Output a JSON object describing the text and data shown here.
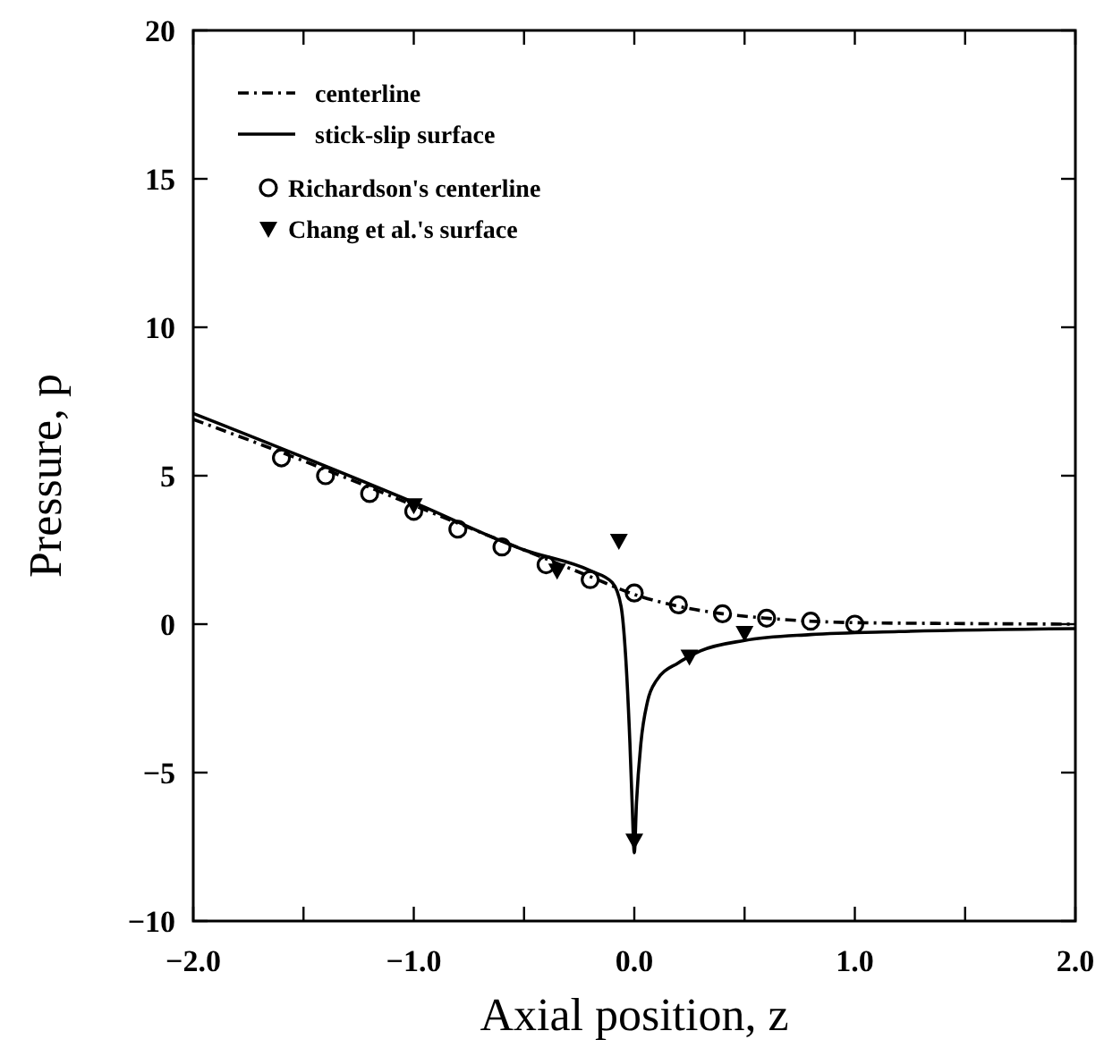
{
  "chart_data": {
    "type": "line",
    "xlabel": "Axial position, z",
    "ylabel": "Pressure, p",
    "xlim": [
      -2,
      2
    ],
    "ylim": [
      -10,
      20
    ],
    "xticks": [
      {
        "value": -2,
        "label": "−2.0"
      },
      {
        "value": -1.5,
        "label": null
      },
      {
        "value": -1,
        "label": "−1.0"
      },
      {
        "value": -0.5,
        "label": null
      },
      {
        "value": 0,
        "label": "0.0"
      },
      {
        "value": 0.5,
        "label": null
      },
      {
        "value": 1,
        "label": "1.0"
      },
      {
        "value": 1.5,
        "label": null
      },
      {
        "value": 2,
        "label": "2.0"
      }
    ],
    "yticks": [
      {
        "value": -10,
        "label": "−10"
      },
      {
        "value": -5,
        "label": "−5"
      },
      0,
      5,
      10,
      15,
      20
    ],
    "grid": false,
    "legend": "top left",
    "series": [
      {
        "name": "centerline",
        "color": "#000000",
        "line_style": "dashdot",
        "marker": "none",
        "x": [
          -2,
          -1.5,
          -1,
          -0.5,
          -0.2,
          0,
          0.2,
          0.4,
          0.6,
          0.8,
          1,
          1.5,
          2
        ],
        "values": [
          6.9,
          5.5,
          4.0,
          2.5,
          1.6,
          1.0,
          0.6,
          0.35,
          0.2,
          0.1,
          0.05,
          0.02,
          0
        ]
      },
      {
        "name": "stick-slip surface",
        "color": "#000000",
        "line_style": "solid",
        "marker": "none",
        "x": [
          -2,
          -1,
          -0.5,
          -0.2,
          -0.1,
          -0.06,
          -0.04,
          -0.02,
          -0.01,
          0,
          0.01,
          0.03,
          0.06,
          0.1,
          0.2,
          0.3,
          0.5,
          0.8,
          1.2,
          2
        ],
        "values": [
          7.1,
          4.1,
          2.5,
          1.8,
          1.4,
          0.6,
          -1,
          -4,
          -6,
          -7.7,
          -6,
          -4,
          -2.6,
          -1.9,
          -1.3,
          -0.9,
          -0.55,
          -0.35,
          -0.25,
          -0.15
        ]
      },
      {
        "name": "Richardson's centerline",
        "type": "scatter",
        "color": "#000000",
        "marker": "circle",
        "x": [
          -1.6,
          -1.4,
          -1.2,
          -1.0,
          -0.8,
          -0.6,
          -0.4,
          -0.2,
          0,
          0.2,
          0.4,
          0.6,
          0.8,
          1.0
        ],
        "values": [
          5.6,
          5.0,
          4.4,
          3.8,
          3.2,
          2.6,
          2.0,
          1.5,
          1.05,
          0.65,
          0.35,
          0.2,
          0.1,
          0.0
        ]
      },
      {
        "name": "Chang et al.'s surface",
        "type": "scatter",
        "color": "#000000",
        "marker": "triangle-down",
        "x": [
          -1.0,
          -0.35,
          -0.07,
          0,
          0.25,
          0.5
        ],
        "values": [
          4.0,
          1.8,
          2.8,
          -7.3,
          -1.1,
          -0.3
        ]
      }
    ]
  }
}
